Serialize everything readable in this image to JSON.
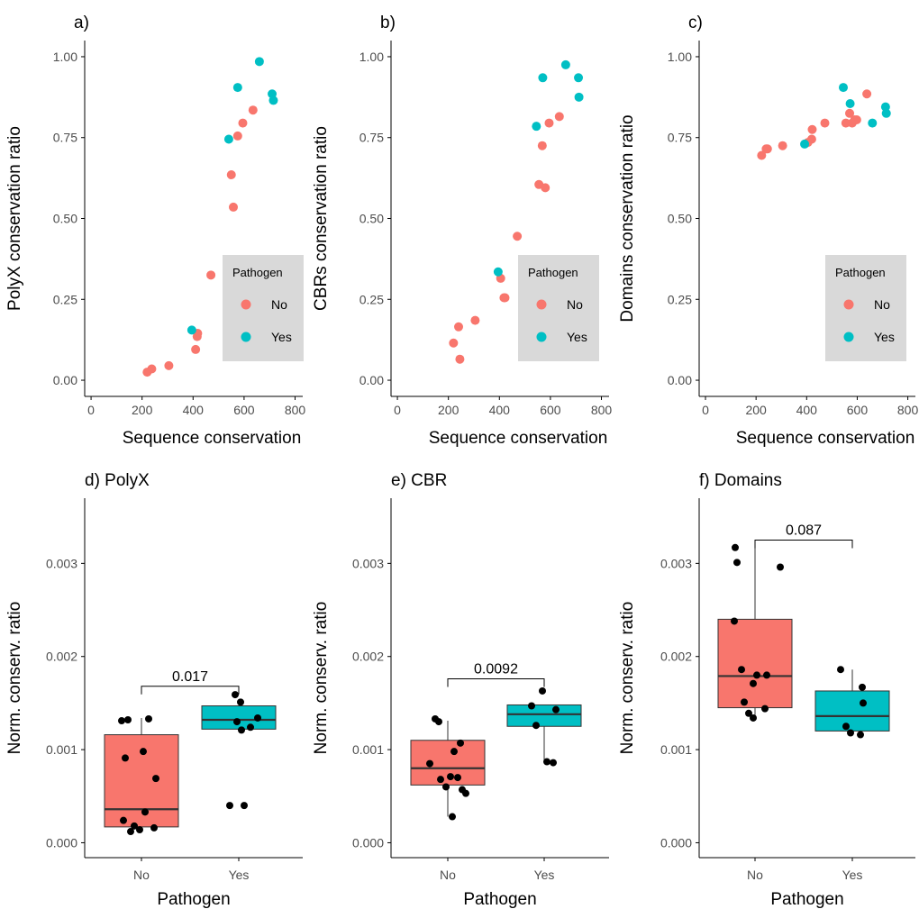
{
  "colors": {
    "no": "#F8766D",
    "yes": "#00BFC4",
    "axis": "#000000",
    "tick": "#4d4d4d",
    "legend_bg": "#d9d9d9",
    "point": "#000000"
  },
  "chart_data": [
    {
      "id": "a",
      "type": "scatter",
      "title": "a)",
      "xlabel": "Sequence conservation",
      "ylabel": "PolyX conservation ratio",
      "xlim": [
        -25,
        830
      ],
      "ylim": [
        -0.05,
        1.05
      ],
      "xticks": [
        0,
        200,
        400,
        600,
        800
      ],
      "xtick_labels": [
        "0",
        "200",
        "400",
        "600",
        "800"
      ],
      "yticks": [
        0,
        0.25,
        0.5,
        0.75,
        1.0
      ],
      "ytick_labels": [
        "0.00",
        "0.25",
        "0.50",
        "0.75",
        "1.00"
      ],
      "legend": {
        "title": "Pathogen",
        "entries": [
          "No",
          "Yes"
        ],
        "position": "right-center"
      },
      "series": [
        {
          "name": "No",
          "color": "#F8766D",
          "x": [
            220,
            238,
            305,
            410,
            416,
            418,
            470,
            550,
            558,
            575,
            595,
            635
          ],
          "y": [
            0.025,
            0.035,
            0.045,
            0.095,
            0.135,
            0.145,
            0.325,
            0.635,
            0.535,
            0.755,
            0.795,
            0.835
          ]
        },
        {
          "name": "Yes",
          "color": "#00BFC4",
          "x": [
            395,
            540,
            575,
            660,
            710,
            715
          ],
          "y": [
            0.155,
            0.745,
            0.905,
            0.985,
            0.885,
            0.865
          ]
        }
      ]
    },
    {
      "id": "b",
      "type": "scatter",
      "title": "b)",
      "xlabel": "Sequence conservation",
      "ylabel": "CBRs conservation ratio",
      "xlim": [
        -25,
        830
      ],
      "ylim": [
        -0.05,
        1.05
      ],
      "xticks": [
        0,
        200,
        400,
        600,
        800
      ],
      "xtick_labels": [
        "0",
        "200",
        "400",
        "600",
        "800"
      ],
      "yticks": [
        0,
        0.25,
        0.5,
        0.75,
        1.0
      ],
      "ytick_labels": [
        "0.00",
        "0.25",
        "0.50",
        "0.75",
        "1.00"
      ],
      "legend": {
        "title": "Pathogen",
        "entries": [
          "No",
          "Yes"
        ],
        "position": "right-center"
      },
      "series": [
        {
          "name": "No",
          "color": "#F8766D",
          "x": [
            220,
            240,
            245,
            305,
            405,
            418,
            422,
            470,
            555,
            568,
            580,
            595,
            635
          ],
          "y": [
            0.115,
            0.165,
            0.065,
            0.185,
            0.315,
            0.255,
            0.255,
            0.445,
            0.605,
            0.725,
            0.595,
            0.795,
            0.815
          ]
        },
        {
          "name": "Yes",
          "color": "#00BFC4",
          "x": [
            395,
            545,
            570,
            660,
            710,
            712
          ],
          "y": [
            0.335,
            0.785,
            0.935,
            0.975,
            0.935,
            0.875
          ]
        }
      ]
    },
    {
      "id": "c",
      "type": "scatter",
      "title": "c)",
      "xlabel": "Sequence conservation",
      "ylabel": "Domains conservation ratio",
      "xlim": [
        -25,
        830
      ],
      "ylim": [
        -0.05,
        1.05
      ],
      "xticks": [
        0,
        200,
        400,
        600,
        800
      ],
      "xtick_labels": [
        "0",
        "200",
        "400",
        "600",
        "800"
      ],
      "yticks": [
        0,
        0.25,
        0.5,
        0.75,
        1.0
      ],
      "ytick_labels": [
        "0.00",
        "0.25",
        "0.50",
        "0.75",
        "1.00"
      ],
      "legend": {
        "title": "Pathogen",
        "entries": [
          "No",
          "Yes"
        ],
        "position": "right-center"
      },
      "series": [
        {
          "name": "No",
          "color": "#F8766D",
          "x": [
            222,
            240,
            245,
            305,
            405,
            420,
            422,
            472,
            555,
            570,
            580,
            590,
            598,
            638
          ],
          "y": [
            0.695,
            0.715,
            0.715,
            0.725,
            0.735,
            0.745,
            0.775,
            0.795,
            0.795,
            0.825,
            0.795,
            0.805,
            0.805,
            0.885
          ]
        },
        {
          "name": "Yes",
          "color": "#00BFC4",
          "x": [
            392,
            545,
            572,
            660,
            712,
            715
          ],
          "y": [
            0.73,
            0.905,
            0.855,
            0.795,
            0.845,
            0.825
          ]
        }
      ]
    },
    {
      "id": "d",
      "type": "box",
      "title": "d) PolyX",
      "xlabel": "Pathogen",
      "ylabel": "Norm. conserv. ratio",
      "categories": [
        "No",
        "Yes"
      ],
      "ylim": [
        -0.00016,
        0.0037
      ],
      "yticks": [
        0,
        0.001,
        0.002,
        0.003
      ],
      "ytick_labels": [
        "0.000",
        "0.001",
        "0.002",
        "0.003"
      ],
      "boxes": [
        {
          "name": "No",
          "color": "#F8766D",
          "q1": 0.00017,
          "median": 0.00036,
          "q3": 0.00116,
          "whisker_low": 0.00012,
          "whisker_high": 0.00134
        },
        {
          "name": "Yes",
          "color": "#00BFC4",
          "q1": 0.00122,
          "median": 0.00132,
          "q3": 0.00147,
          "whisker_low": 0.00122,
          "whisker_high": 0.00147
        }
      ],
      "points": [
        {
          "cat": 0,
          "jitter": -0.22,
          "y": 0.00131
        },
        {
          "cat": 0,
          "jitter": -0.15,
          "y": 0.00132
        },
        {
          "cat": 0,
          "jitter": 0.08,
          "y": 0.00133
        },
        {
          "cat": 0,
          "jitter": -0.18,
          "y": 0.00091
        },
        {
          "cat": 0,
          "jitter": 0.02,
          "y": 0.00098
        },
        {
          "cat": 0,
          "jitter": 0.16,
          "y": 0.00069
        },
        {
          "cat": 0,
          "jitter": -0.2,
          "y": 0.00024
        },
        {
          "cat": 0,
          "jitter": 0.04,
          "y": 0.00033
        },
        {
          "cat": 0,
          "jitter": -0.08,
          "y": 0.00018
        },
        {
          "cat": 0,
          "jitter": -0.02,
          "y": 0.00014
        },
        {
          "cat": 0,
          "jitter": 0.14,
          "y": 0.00016
        },
        {
          "cat": 0,
          "jitter": -0.12,
          "y": 0.00012
        },
        {
          "cat": 1,
          "jitter": -0.04,
          "y": 0.00159
        },
        {
          "cat": 1,
          "jitter": 0.02,
          "y": 0.00151
        },
        {
          "cat": 1,
          "jitter": -0.02,
          "y": 0.0013
        },
        {
          "cat": 1,
          "jitter": 0.21,
          "y": 0.00134
        },
        {
          "cat": 1,
          "jitter": 0.03,
          "y": 0.00121
        },
        {
          "cat": 1,
          "jitter": 0.13,
          "y": 0.00124
        },
        {
          "cat": 1,
          "jitter": -0.1,
          "y": 0.0004
        },
        {
          "cat": 1,
          "jitter": 0.06,
          "y": 0.0004
        }
      ],
      "significance": {
        "label": "0.017",
        "y": 0.00168
      }
    },
    {
      "id": "e",
      "type": "box",
      "title": "e) CBR",
      "xlabel": "Pathogen",
      "ylabel": "Norm. conserv. ratio",
      "categories": [
        "No",
        "Yes"
      ],
      "ylim": [
        -0.00016,
        0.0037
      ],
      "yticks": [
        0,
        0.001,
        0.002,
        0.003
      ],
      "ytick_labels": [
        "0.000",
        "0.001",
        "0.002",
        "0.003"
      ],
      "boxes": [
        {
          "name": "No",
          "color": "#F8766D",
          "q1": 0.00062,
          "median": 0.0008,
          "q3": 0.0011,
          "whisker_low": 0.00028,
          "whisker_high": 0.00131
        },
        {
          "name": "Yes",
          "color": "#00BFC4",
          "q1": 0.00125,
          "median": 0.00138,
          "q3": 0.00148,
          "whisker_low": 0.00086,
          "whisker_high": 0.00148
        }
      ],
      "points": [
        {
          "cat": 0,
          "jitter": -0.14,
          "y": 0.00133
        },
        {
          "cat": 0,
          "jitter": -0.1,
          "y": 0.0013
        },
        {
          "cat": 0,
          "jitter": 0.14,
          "y": 0.00107
        },
        {
          "cat": 0,
          "jitter": 0.07,
          "y": 0.00098
        },
        {
          "cat": 0,
          "jitter": -0.2,
          "y": 0.00085
        },
        {
          "cat": 0,
          "jitter": 0.03,
          "y": 0.00071
        },
        {
          "cat": 0,
          "jitter": -0.02,
          "y": 0.0006
        },
        {
          "cat": 0,
          "jitter": 0.16,
          "y": 0.00057
        },
        {
          "cat": 0,
          "jitter": 0.11,
          "y": 0.0007
        },
        {
          "cat": 0,
          "jitter": -0.08,
          "y": 0.00068
        },
        {
          "cat": 0,
          "jitter": 0.2,
          "y": 0.00053
        },
        {
          "cat": 0,
          "jitter": 0.05,
          "y": 0.00028
        },
        {
          "cat": 1,
          "jitter": -0.02,
          "y": 0.00163
        },
        {
          "cat": 1,
          "jitter": -0.14,
          "y": 0.00147
        },
        {
          "cat": 1,
          "jitter": 0.13,
          "y": 0.00143
        },
        {
          "cat": 1,
          "jitter": -0.09,
          "y": 0.00126
        },
        {
          "cat": 1,
          "jitter": 0.03,
          "y": 0.00087
        },
        {
          "cat": 1,
          "jitter": 0.1,
          "y": 0.00086
        }
      ],
      "significance": {
        "label": "0.0092",
        "y": 0.00176
      }
    },
    {
      "id": "f",
      "type": "box",
      "title": "f) Domains",
      "xlabel": "Pathogen",
      "ylabel": "Norm. conserv. ratio",
      "categories": [
        "No",
        "Yes"
      ],
      "ylim": [
        -0.00016,
        0.0037
      ],
      "yticks": [
        0,
        0.001,
        0.002,
        0.003
      ],
      "ytick_labels": [
        "0.000",
        "0.001",
        "0.002",
        "0.003"
      ],
      "boxes": [
        {
          "name": "No",
          "color": "#F8766D",
          "q1": 0.00145,
          "median": 0.00179,
          "q3": 0.0024,
          "whisker_low": 0.00133,
          "whisker_high": 0.00325
        },
        {
          "name": "Yes",
          "color": "#00BFC4",
          "q1": 0.0012,
          "median": 0.00136,
          "q3": 0.00163,
          "whisker_low": 0.00115,
          "whisker_high": 0.00186
        }
      ],
      "points": [
        {
          "cat": 0,
          "jitter": -0.22,
          "y": 0.00317
        },
        {
          "cat": 0,
          "jitter": -0.2,
          "y": 0.00301
        },
        {
          "cat": 0,
          "jitter": 0.28,
          "y": 0.00296
        },
        {
          "cat": 0,
          "jitter": -0.23,
          "y": 0.00238
        },
        {
          "cat": 0,
          "jitter": -0.15,
          "y": 0.00186
        },
        {
          "cat": 0,
          "jitter": 0.02,
          "y": 0.0018
        },
        {
          "cat": 0,
          "jitter": 0.13,
          "y": 0.0018
        },
        {
          "cat": 0,
          "jitter": -0.02,
          "y": 0.00171
        },
        {
          "cat": 0,
          "jitter": -0.12,
          "y": 0.00151
        },
        {
          "cat": 0,
          "jitter": 0.11,
          "y": 0.00144
        },
        {
          "cat": 0,
          "jitter": -0.07,
          "y": 0.00139
        },
        {
          "cat": 0,
          "jitter": -0.02,
          "y": 0.00134
        },
        {
          "cat": 1,
          "jitter": -0.13,
          "y": 0.00186
        },
        {
          "cat": 1,
          "jitter": 0.11,
          "y": 0.00167
        },
        {
          "cat": 1,
          "jitter": 0.12,
          "y": 0.0015
        },
        {
          "cat": 1,
          "jitter": -0.07,
          "y": 0.00125
        },
        {
          "cat": 1,
          "jitter": -0.02,
          "y": 0.00118
        },
        {
          "cat": 1,
          "jitter": 0.09,
          "y": 0.00116
        }
      ],
      "significance": {
        "label": "0.087",
        "y": 0.00325
      }
    }
  ]
}
